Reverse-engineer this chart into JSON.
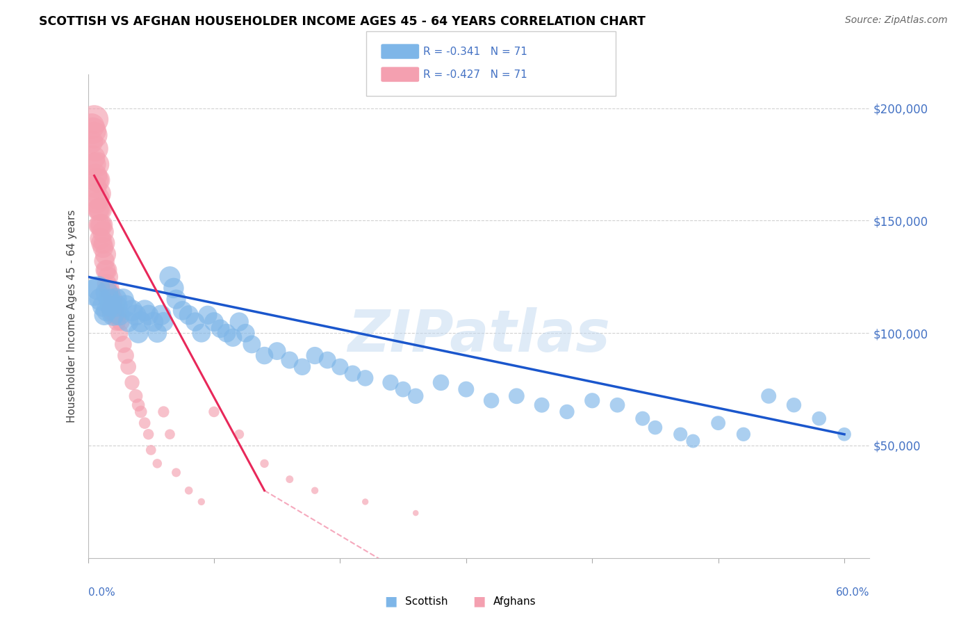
{
  "title": "SCOTTISH VS AFGHAN HOUSEHOLDER INCOME AGES 45 - 64 YEARS CORRELATION CHART",
  "source": "Source: ZipAtlas.com",
  "ylabel": "Householder Income Ages 45 - 64 years",
  "ytick_labels": [
    "$50,000",
    "$100,000",
    "$150,000",
    "$200,000"
  ],
  "ytick_values": [
    50000,
    100000,
    150000,
    200000
  ],
  "ylim": [
    0,
    215000
  ],
  "xlim": [
    0.0,
    0.62
  ],
  "scottish_color": "#7EB6E8",
  "afghan_color": "#F4A0B0",
  "regression_scottish_color": "#1A56CC",
  "regression_afghan_color": "#E8285A",
  "watermark": "ZIPatlas",
  "scottish_x": [
    0.005,
    0.008,
    0.01,
    0.012,
    0.013,
    0.015,
    0.015,
    0.017,
    0.018,
    0.02,
    0.022,
    0.023,
    0.025,
    0.028,
    0.03,
    0.032,
    0.035,
    0.038,
    0.04,
    0.042,
    0.045,
    0.048,
    0.052,
    0.055,
    0.058,
    0.06,
    0.065,
    0.068,
    0.07,
    0.075,
    0.08,
    0.085,
    0.09,
    0.095,
    0.1,
    0.105,
    0.11,
    0.115,
    0.12,
    0.125,
    0.13,
    0.14,
    0.15,
    0.16,
    0.17,
    0.18,
    0.19,
    0.2,
    0.21,
    0.22,
    0.24,
    0.25,
    0.26,
    0.28,
    0.3,
    0.32,
    0.34,
    0.36,
    0.38,
    0.4,
    0.42,
    0.44,
    0.45,
    0.47,
    0.48,
    0.5,
    0.52,
    0.54,
    0.56,
    0.58,
    0.6
  ],
  "scottish_y": [
    118000,
    120000,
    115000,
    112000,
    108000,
    110000,
    118000,
    115000,
    112000,
    108000,
    115000,
    112000,
    108000,
    115000,
    112000,
    105000,
    110000,
    108000,
    100000,
    105000,
    110000,
    108000,
    105000,
    100000,
    108000,
    105000,
    125000,
    120000,
    115000,
    110000,
    108000,
    105000,
    100000,
    108000,
    105000,
    102000,
    100000,
    98000,
    105000,
    100000,
    95000,
    90000,
    92000,
    88000,
    85000,
    90000,
    88000,
    85000,
    82000,
    80000,
    78000,
    75000,
    72000,
    78000,
    75000,
    70000,
    72000,
    68000,
    65000,
    70000,
    68000,
    62000,
    58000,
    55000,
    52000,
    60000,
    55000,
    72000,
    68000,
    62000,
    55000
  ],
  "scottish_size": [
    300,
    250,
    220,
    200,
    180,
    200,
    220,
    200,
    190,
    200,
    220,
    200,
    190,
    200,
    210,
    180,
    200,
    190,
    180,
    190,
    200,
    180,
    170,
    160,
    180,
    165,
    190,
    180,
    165,
    160,
    165,
    155,
    150,
    155,
    160,
    148,
    150,
    145,
    155,
    148,
    140,
    135,
    138,
    130,
    125,
    132,
    128,
    122,
    118,
    115,
    112,
    108,
    105,
    115,
    110,
    105,
    108,
    100,
    95,
    102,
    98,
    92,
    88,
    85,
    82,
    90,
    85,
    100,
    95,
    88,
    80
  ],
  "afghan_x": [
    0.003,
    0.003,
    0.004,
    0.004,
    0.005,
    0.005,
    0.005,
    0.006,
    0.006,
    0.006,
    0.007,
    0.007,
    0.007,
    0.008,
    0.008,
    0.008,
    0.009,
    0.009,
    0.009,
    0.01,
    0.01,
    0.01,
    0.011,
    0.011,
    0.012,
    0.012,
    0.013,
    0.013,
    0.014,
    0.014,
    0.015,
    0.015,
    0.016,
    0.016,
    0.017,
    0.017,
    0.018,
    0.018,
    0.019,
    0.02,
    0.02,
    0.021,
    0.022,
    0.022,
    0.023,
    0.024,
    0.025,
    0.026,
    0.028,
    0.03,
    0.032,
    0.035,
    0.038,
    0.04,
    0.042,
    0.045,
    0.048,
    0.05,
    0.055,
    0.06,
    0.065,
    0.07,
    0.08,
    0.09,
    0.1,
    0.12,
    0.14,
    0.16,
    0.18,
    0.22,
    0.26
  ],
  "afghan_y": [
    192000,
    185000,
    190000,
    178000,
    195000,
    188000,
    175000,
    182000,
    170000,
    165000,
    175000,
    168000,
    158000,
    168000,
    160000,
    155000,
    162000,
    155000,
    148000,
    155000,
    148000,
    142000,
    148000,
    140000,
    145000,
    138000,
    140000,
    132000,
    135000,
    128000,
    128000,
    122000,
    125000,
    118000,
    120000,
    112000,
    118000,
    110000,
    112000,
    108000,
    115000,
    110000,
    108000,
    112000,
    105000,
    108000,
    100000,
    105000,
    95000,
    90000,
    85000,
    78000,
    72000,
    68000,
    65000,
    60000,
    55000,
    48000,
    42000,
    65000,
    55000,
    38000,
    30000,
    25000,
    65000,
    55000,
    42000,
    35000,
    30000,
    25000,
    20000
  ],
  "afghan_size": [
    280,
    220,
    300,
    260,
    350,
    300,
    240,
    280,
    240,
    220,
    270,
    250,
    210,
    250,
    230,
    210,
    240,
    220,
    200,
    230,
    210,
    195,
    210,
    195,
    200,
    185,
    195,
    180,
    190,
    175,
    180,
    165,
    175,
    160,
    168,
    155,
    162,
    148,
    155,
    148,
    160,
    148,
    142,
    155,
    138,
    145,
    135,
    142,
    128,
    118,
    108,
    95,
    82,
    72,
    65,
    58,
    50,
    45,
    38,
    55,
    45,
    35,
    28,
    22,
    50,
    40,
    32,
    25,
    22,
    18,
    15
  ]
}
